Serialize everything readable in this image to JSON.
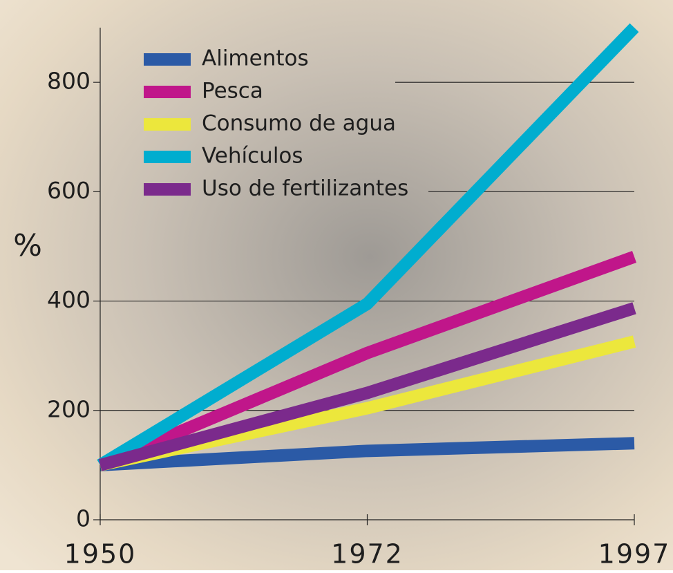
{
  "chart_data": {
    "type": "line",
    "y_label": "%",
    "categories": [
      "1950",
      "1972",
      "1997"
    ],
    "series": [
      {
        "name": "Alimentos",
        "color": "#2b5aa6",
        "values": [
          100,
          126,
          140
        ]
      },
      {
        "name": "Pesca",
        "color": "#c0168a",
        "values": [
          100,
          305,
          481
        ]
      },
      {
        "name": "Consumo de agua",
        "color": "#ece73c",
        "values": [
          100,
          204,
          326
        ]
      },
      {
        "name": "Vehículos",
        "color": "#00adcf",
        "values": [
          100,
          395,
          900
        ]
      },
      {
        "name": "Uso de fertilizantes",
        "color": "#7b2a8c",
        "values": [
          100,
          232,
          387
        ]
      }
    ],
    "ylim": [
      0,
      900
    ],
    "yticks": [
      0,
      200,
      400,
      600,
      800
    ],
    "grid": true
  }
}
